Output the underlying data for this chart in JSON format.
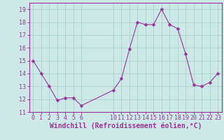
{
  "x": [
    0,
    1,
    2,
    3,
    4,
    5,
    6,
    10,
    11,
    12,
    13,
    14,
    15,
    16,
    17,
    18,
    19,
    20,
    21,
    22,
    23
  ],
  "y": [
    15,
    14,
    13,
    11.9,
    12.1,
    12.1,
    11.5,
    12.7,
    13.6,
    15.9,
    18.0,
    17.8,
    17.8,
    19.0,
    17.8,
    17.5,
    15.5,
    13.1,
    13.0,
    13.3,
    14.0
  ],
  "line_color": "#993399",
  "marker": "D",
  "marker_size": 2.5,
  "bg_color": "#cce9e7",
  "grid_color": "#aad4d2",
  "xlabel": "Windchill (Refroidissement éolien,°C)",
  "xlabel_color": "#993399",
  "ylim": [
    11,
    19.5
  ],
  "xlim": [
    -0.5,
    23.5
  ],
  "yticks": [
    11,
    12,
    13,
    14,
    15,
    16,
    17,
    18,
    19
  ],
  "xticks": [
    0,
    1,
    2,
    3,
    4,
    5,
    6,
    10,
    11,
    12,
    13,
    14,
    15,
    16,
    17,
    18,
    19,
    20,
    21,
    22,
    23
  ],
  "tick_color": "#993399",
  "tick_fontsize": 6.0,
  "xlabel_fontsize": 7.0,
  "spine_color": "#993399",
  "line_width": 0.8
}
